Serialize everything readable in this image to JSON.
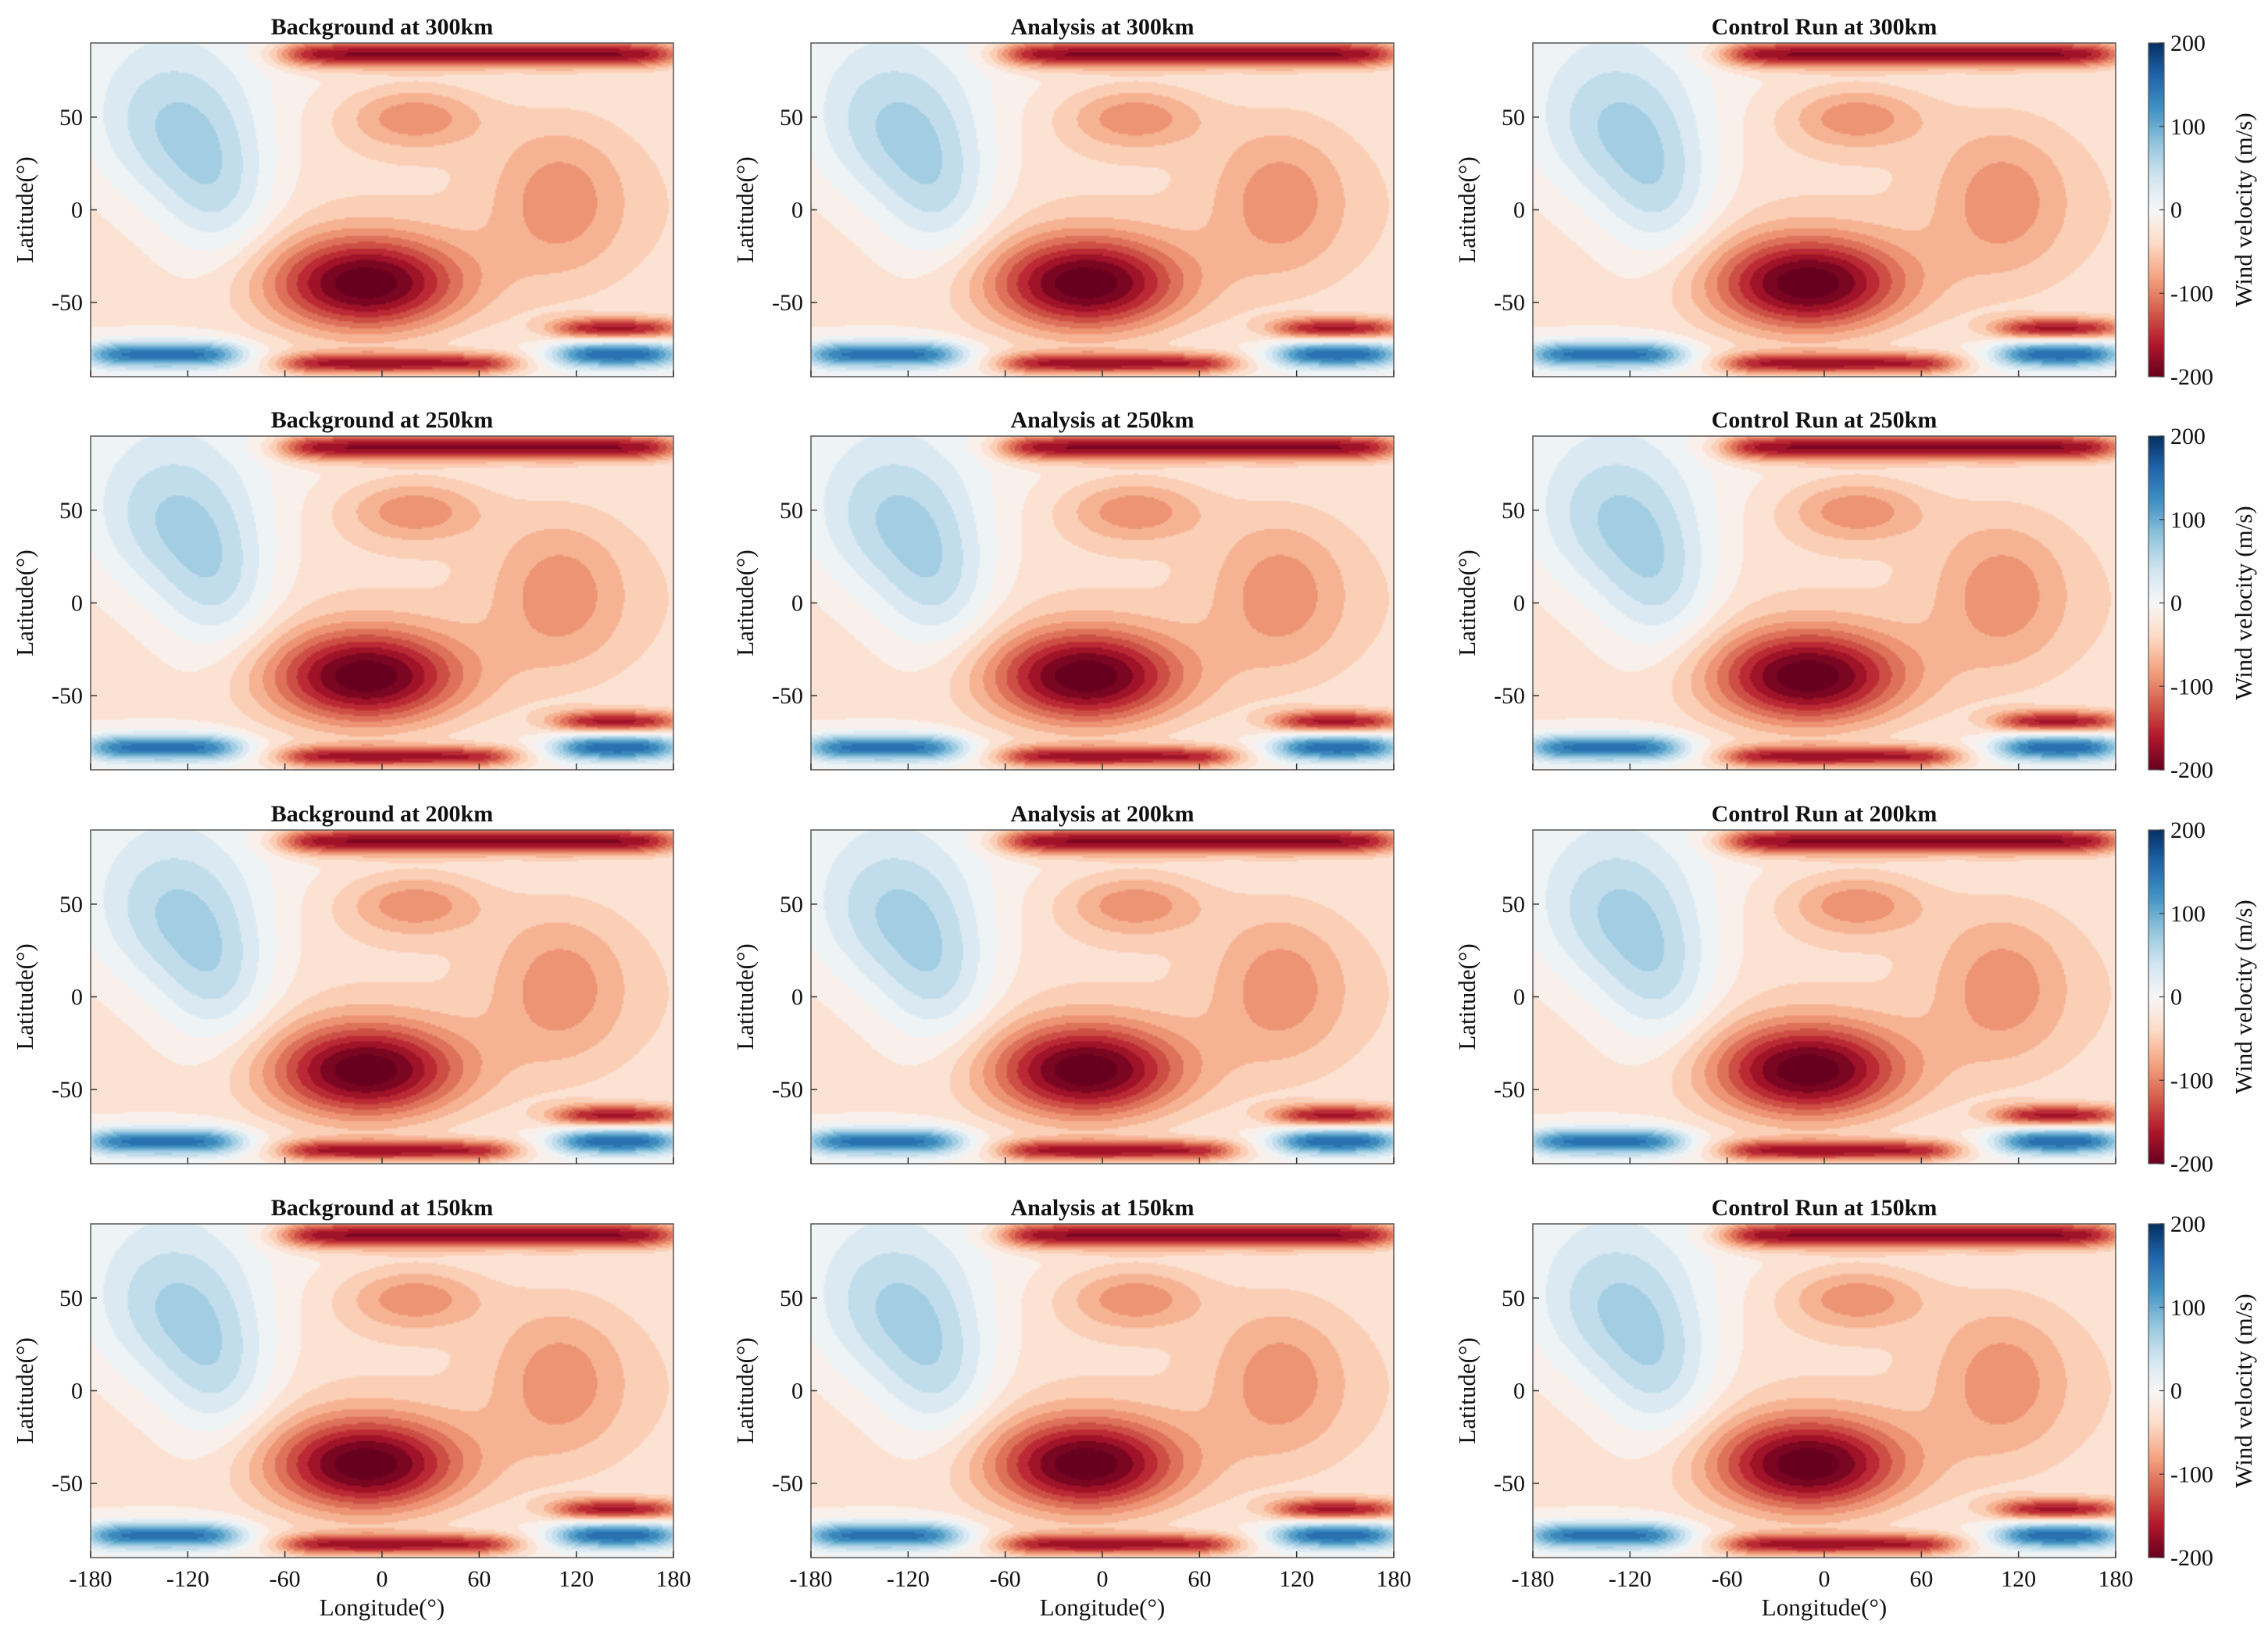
{
  "chart_data": {
    "type": "heatmap",
    "grid": {
      "rows": 4,
      "cols": 3
    },
    "columns": [
      "Background",
      "Analysis",
      "Control Run"
    ],
    "rows": [
      "300km",
      "250km",
      "200km",
      "150km"
    ],
    "panels": [
      {
        "row": 0,
        "col": 0,
        "title": "Background at 300km"
      },
      {
        "row": 0,
        "col": 1,
        "title": "Analysis at 300km"
      },
      {
        "row": 0,
        "col": 2,
        "title": "Control Run at 300km"
      },
      {
        "row": 1,
        "col": 0,
        "title": "Background at 250km"
      },
      {
        "row": 1,
        "col": 1,
        "title": "Analysis at 250km"
      },
      {
        "row": 1,
        "col": 2,
        "title": "Control Run at 250km"
      },
      {
        "row": 2,
        "col": 0,
        "title": "Background at 200km"
      },
      {
        "row": 2,
        "col": 1,
        "title": "Analysis at 200km"
      },
      {
        "row": 2,
        "col": 2,
        "title": "Control Run at 200km"
      },
      {
        "row": 3,
        "col": 0,
        "title": "Background at 150km"
      },
      {
        "row": 3,
        "col": 1,
        "title": "Analysis at 150km"
      },
      {
        "row": 3,
        "col": 2,
        "title": "Control Run at 150km"
      }
    ],
    "xlabel": "Longitude(°)",
    "ylabel": "Latitude(°)",
    "xlim": [
      -180,
      180
    ],
    "ylim": [
      -90,
      90
    ],
    "xticks": [
      -180,
      -120,
      -60,
      0,
      60,
      120,
      180
    ],
    "xtick_labels": [
      "-180",
      "-120",
      "-60",
      "0",
      "60",
      "120",
      "180"
    ],
    "yticks": [
      50,
      0,
      -50
    ],
    "ytick_labels": [
      "50",
      "0",
      "-50"
    ],
    "colorbar": {
      "label": "Wind velocity (m/s)",
      "range": [
        -200,
        200
      ],
      "ticks": [
        200,
        100,
        0,
        -100,
        -200
      ],
      "tick_labels": [
        "200",
        "100",
        "0",
        "-100",
        "-200"
      ],
      "colormap": "diverging red-white-blue",
      "colors": [
        "#67001f",
        "#b2182b",
        "#d6604d",
        "#f4a582",
        "#fddbc7",
        "#f7f7f7",
        "#d1e5f0",
        "#92c5de",
        "#4393c3",
        "#2166ac",
        "#053061"
      ]
    },
    "features": [
      {
        "type": "blob",
        "lon": -130,
        "lat": 45,
        "sx": 38,
        "sy": 32,
        "amp": 85
      },
      {
        "type": "blob",
        "lon": -100,
        "lat": 5,
        "sx": 25,
        "sy": 28,
        "amp": 55
      },
      {
        "type": "blob",
        "lon": -10,
        "lat": -40,
        "sx": 42,
        "sy": 18,
        "amp": -190
      },
      {
        "type": "blob",
        "lon": 110,
        "lat": 5,
        "sx": 30,
        "sy": 30,
        "amp": -60
      },
      {
        "type": "blob",
        "lon": 20,
        "lat": 50,
        "sx": 30,
        "sy": 12,
        "amp": -70
      },
      {
        "type": "band",
        "lat": 84,
        "lon0": -60,
        "lon1": 180,
        "sy": 5,
        "amp": -170
      },
      {
        "type": "band",
        "lat": -78,
        "lon0": -180,
        "lon1": -90,
        "sy": 5,
        "amp": 170
      },
      {
        "type": "band",
        "lat": -78,
        "lon0": 110,
        "lon1": 180,
        "sy": 5,
        "amp": 180
      },
      {
        "type": "band",
        "lat": -83,
        "lon0": -60,
        "lon1": 80,
        "sy": 4,
        "amp": -150
      },
      {
        "type": "band",
        "lat": -64,
        "lon0": 110,
        "lon1": 180,
        "sy": 4,
        "amp": -150
      }
    ]
  }
}
